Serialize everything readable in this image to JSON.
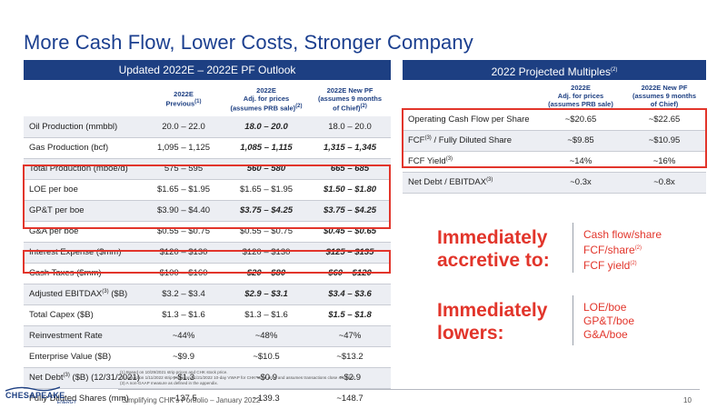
{
  "title": "More Cash Flow, Lower Costs, Stronger Company",
  "left_panel": {
    "header": "Updated 2022E – 2022E PF Outlook",
    "columns": {
      "c1": "2022E",
      "c1b": "Previous",
      "c1sup": "(1)",
      "c2a": "2022E",
      "c2b": "Adj. for prices",
      "c2c": "(assumes PRB sale)",
      "c2sup": "(2)",
      "c3a": "2022E New PF",
      "c3b": "(assumes 9 months",
      "c3c": "of Chief)",
      "c3sup": "(2)"
    },
    "rows": [
      {
        "label": "Oil Production (mmbbl)",
        "prev": "20.0 – 22.0",
        "adj": "18.0 – 20.0",
        "pf": "18.0 – 20.0"
      },
      {
        "label": "Gas Production (bcf)",
        "prev": "1,095 – 1,125",
        "adj": "1,085 – 1,115",
        "pf": "1,315 – 1,345"
      },
      {
        "label": "Total Production (mboe/d)",
        "prev": "575 – 595",
        "adj": "560 – 580",
        "pf": "665 – 685"
      },
      {
        "label": "LOE per boe",
        "prev": "$1.65 – $1.95",
        "adj": "$1.65 – $1.95",
        "pf": "$1.50 – $1.80"
      },
      {
        "label": "GP&T per boe",
        "prev": "$3.90 – $4.40",
        "adj": "$3.75 – $4.25",
        "pf": "$3.75 – $4.25"
      },
      {
        "label": "G&A per boe",
        "prev": "$0.55 – $0.75",
        "adj": "$0.55 – $0.75",
        "pf": "$0.45 – $0.65"
      },
      {
        "label": "Interest Expense ($mm)",
        "prev": "$120 – $130",
        "adj": "$120 – $130",
        "pf": "$125 – $135"
      },
      {
        "label": "Cash Taxes ($mm)",
        "prev": "$100 – $160",
        "adj": "$20 – $80",
        "pf": "$60 – $120"
      },
      {
        "label": "Adjusted EBITDAX",
        "label_sup": "(3)",
        "label_tail": " ($B)",
        "prev": "$3.2 – $3.4",
        "adj": "$2.9 – $3.1",
        "pf": "$3.4 – $3.6"
      },
      {
        "label": "Total Capex ($B)",
        "prev": "$1.3 – $1.6",
        "adj": "$1.3 – $1.6",
        "pf": "$1.5 – $1.8"
      },
      {
        "label": "Reinvestment Rate",
        "prev": "~44%",
        "adj": "~48%",
        "pf": "~47%"
      },
      {
        "label": "Enterprise Value ($B)",
        "prev": "~$9.9",
        "adj": "~$10.5",
        "pf": "~$13.2"
      },
      {
        "label": "Net Debt",
        "label_sup": "(3)",
        "label_tail": " ($B) (12/31/2021)",
        "prev": "~$1.3",
        "adj": "~$0.9",
        "pf": "~$2.9"
      },
      {
        "label": "Fully Diluted Shares (mm)",
        "prev": "~137.5",
        "adj": "~139.3",
        "pf": "~148.7"
      }
    ]
  },
  "right_panel": {
    "header": "2022 Projected Multiples",
    "header_sup": "(2)",
    "columns": {
      "c1a": "2022E",
      "c1b": "Adj. for prices",
      "c1c": "(assumes PRB sale)",
      "c2a": "2022E New PF",
      "c2b": "(assumes 9 months",
      "c2c": "of Chief)"
    },
    "rows": [
      {
        "label": "Operating Cash Flow per Share",
        "adj": "~$20.65",
        "pf": "~$22.65"
      },
      {
        "label": "FCF",
        "label_sup": "(3)",
        "label_tail": " / Fully Diluted Share",
        "adj": "~$9.85",
        "pf": "~$10.95"
      },
      {
        "label": "FCF Yield",
        "label_sup": "(3)",
        "label_tail": "",
        "adj": "~14%",
        "pf": "~16%"
      },
      {
        "label": "Net Debt / EBITDAX",
        "label_sup": "(3)",
        "label_tail": "",
        "adj": "~0.3x",
        "pf": "~0.8x"
      }
    ]
  },
  "callouts": {
    "accretive_line1": "Immediately",
    "accretive_line2": "accretive to:",
    "accretive_items": [
      {
        "text": "Cash flow/share",
        "sup": ""
      },
      {
        "text": "FCF/share",
        "sup": "(2)"
      },
      {
        "text": "FCF yield",
        "sup": "(2)"
      }
    ],
    "lowers_line1": "Immediately",
    "lowers_line2": "lowers:",
    "lowers_items": [
      "LOE/boe",
      "GP&T/boe",
      "G&A/boe"
    ]
  },
  "footnotes": [
    "(1)  Based on 10/29/2021 strip prices and CHK stock price.",
    "(2)  Based on 1/11/2022 strip prices and 1/21/2022 10-day VWAP for CHK stock price and assumes transactions close 4/1/2022.",
    "(3)  A non-GAAP measure as defined in the appendix."
  ],
  "footer": {
    "text": "Simplifying CHK's Portfolio – January 2022",
    "page": "10",
    "logo_main": "CHESAPEAKE",
    "logo_sub": "ENERGY"
  },
  "colors": {
    "navy": "#1d3f82",
    "title_blue": "#1b3f8f",
    "highlight_red": "#e2352b",
    "alt_row": "#eceef3"
  }
}
